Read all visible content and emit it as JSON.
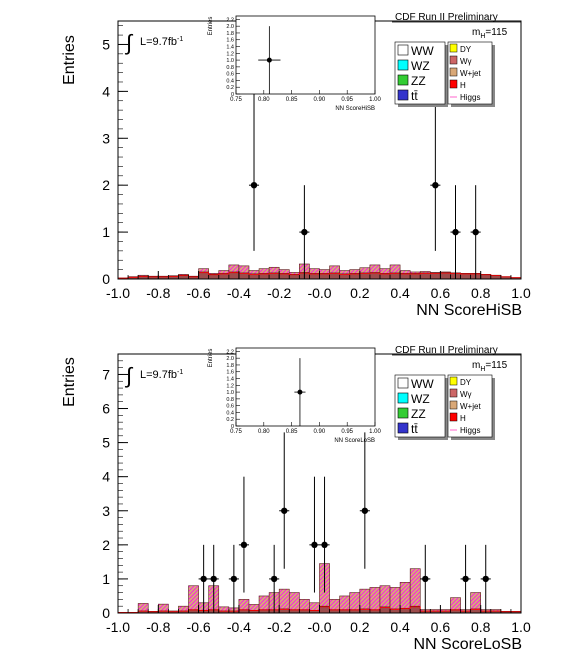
{
  "charts": [
    {
      "key": "top",
      "preliminary": "CDF Run II Preliminary",
      "lumi": "L=9.7fb",
      "lumi_exp": "-1",
      "mass_main": "m",
      "mass_sub": "H",
      "mass_val": "=115",
      "ylabel": "Entries",
      "xlabel": "NN ScoreHiSB",
      "inset_ylabel": "Entries",
      "inset_xlabel": "NN ScoreHiSB"
    },
    {
      "key": "bottom",
      "preliminary": "CDF Run II Preliminary",
      "lumi": "L=9.7fb",
      "lumi_exp": "-1",
      "mass_main": "m",
      "mass_sub": "H",
      "mass_val": "=115",
      "ylabel": "Entries",
      "xlabel": "NN ScoreLoSB",
      "inset_ylabel": "Entries",
      "inset_xlabel": "NN ScoreLoSB"
    }
  ],
  "legend": {
    "left": [
      {
        "label": "WW",
        "color": "#ffffff"
      },
      {
        "label": "WZ",
        "color": "#00ffff"
      },
      {
        "label": "ZZ",
        "color": "#33cc33"
      },
      {
        "label": "tt̄",
        "color": "#3333cc"
      }
    ],
    "right": [
      {
        "label": "DY",
        "color": "#ffff00"
      },
      {
        "label": "Wγ",
        "color": "#cc6666"
      },
      {
        "label": "W+jet",
        "color": "#d9a877"
      },
      {
        "label": "H",
        "color": "#ff0000"
      },
      {
        "label": "Higgs",
        "color": "#ff66cc",
        "line": true
      }
    ]
  },
  "chart_data": [
    {
      "type": "histogram",
      "name": "NN ScoreHiSB",
      "xlim": [
        -1.0,
        1.0
      ],
      "ylim": [
        0,
        5.5
      ],
      "xticks": [
        "-1.0",
        "-0.8",
        "-0.6",
        "-0.4",
        "-0.2",
        "-0.0",
        "0.2",
        "0.4",
        "0.6",
        "0.8",
        "1.0"
      ],
      "yticks": [
        "0",
        "1",
        "2",
        "3",
        "4",
        "5"
      ],
      "bin_width": 0.05,
      "mc_total": [
        0.02,
        0.05,
        0.08,
        0.06,
        0.06,
        0.07,
        0.1,
        0.06,
        0.22,
        0.12,
        0.18,
        0.3,
        0.28,
        0.18,
        0.22,
        0.25,
        0.2,
        0.14,
        0.32,
        0.22,
        0.2,
        0.28,
        0.18,
        0.2,
        0.24,
        0.3,
        0.22,
        0.3,
        0.18,
        0.15,
        0.16,
        0.14,
        0.15,
        0.13,
        0.12,
        0.12,
        0.1,
        0.08,
        0.05,
        0.03
      ],
      "background_dark": [
        0.02,
        0.04,
        0.06,
        0.05,
        0.05,
        0.06,
        0.08,
        0.05,
        0.15,
        0.1,
        0.12,
        0.15,
        0.13,
        0.11,
        0.12,
        0.13,
        0.12,
        0.1,
        0.14,
        0.12,
        0.12,
        0.13,
        0.11,
        0.12,
        0.13,
        0.14,
        0.12,
        0.13,
        0.12,
        0.12,
        0.13,
        0.13,
        0.14,
        0.13,
        0.12,
        0.12,
        0.1,
        0.08,
        0.05,
        0.03
      ],
      "data_points": [
        {
          "x": -0.325,
          "y": 2,
          "err": [
            1.4,
            2.0
          ]
        },
        {
          "x": -0.075,
          "y": 1,
          "err": [
            1.0,
            1.0
          ]
        },
        {
          "x": 0.575,
          "y": 2,
          "err": [
            1.4,
            2.0
          ]
        },
        {
          "x": 0.675,
          "y": 1,
          "err": [
            1.0,
            1.0
          ]
        },
        {
          "x": 0.775,
          "y": 1,
          "err": [
            1.0,
            1.0
          ]
        }
      ],
      "inset": {
        "xlim": [
          0.75,
          1.0
        ],
        "ylim": [
          0,
          2.3
        ],
        "xticks": [
          "0.75",
          "0.80",
          "0.85",
          "0.90",
          "0.95",
          "1.00"
        ],
        "yticks": [
          "0",
          "0.2",
          "0.4",
          "0.6",
          "0.8",
          "1.0",
          "1.2",
          "1.4",
          "1.6",
          "1.8",
          "2.0",
          "2.2"
        ],
        "data_points": [
          {
            "x": 0.81,
            "y": 1,
            "xerr": 0.02,
            "err": [
              1.0,
              1.0
            ]
          }
        ]
      }
    },
    {
      "type": "histogram",
      "name": "NN ScoreLoSB",
      "xlim": [
        -1.0,
        1.0
      ],
      "ylim": [
        0,
        7.6
      ],
      "xticks": [
        "-1.0",
        "-0.8",
        "-0.6",
        "-0.4",
        "-0.2",
        "-0.0",
        "0.2",
        "0.4",
        "0.6",
        "0.8",
        "1.0"
      ],
      "yticks": [
        "0",
        "1",
        "2",
        "3",
        "4",
        "5",
        "6",
        "7"
      ],
      "bin_width": 0.05,
      "mc_total": [
        0.02,
        0.02,
        0.28,
        0.05,
        0.26,
        0.06,
        0.2,
        0.8,
        0.3,
        0.8,
        0.18,
        0.15,
        0.4,
        0.25,
        0.5,
        0.6,
        0.7,
        0.6,
        0.4,
        0.3,
        1.45,
        0.4,
        0.5,
        0.6,
        0.7,
        0.75,
        0.8,
        0.75,
        0.9,
        1.3,
        0.1,
        0.1,
        0.1,
        0.45,
        0.1,
        0.6,
        0.1,
        0.1,
        0.05,
        0.05
      ],
      "background_dark": [
        0.02,
        0.02,
        0.06,
        0.04,
        0.06,
        0.04,
        0.06,
        0.1,
        0.08,
        0.1,
        0.06,
        0.06,
        0.1,
        0.08,
        0.1,
        0.1,
        0.12,
        0.1,
        0.1,
        0.08,
        0.2,
        0.1,
        0.1,
        0.1,
        0.12,
        0.1,
        0.18,
        0.12,
        0.14,
        0.2,
        0.06,
        0.06,
        0.06,
        0.1,
        0.06,
        0.12,
        0.06,
        0.06,
        0.04,
        0.04
      ],
      "data_points": [
        {
          "x": -0.575,
          "y": 1,
          "err": [
            1.0,
            1.0
          ]
        },
        {
          "x": -0.525,
          "y": 1,
          "err": [
            1.0,
            1.0
          ]
        },
        {
          "x": -0.425,
          "y": 1,
          "err": [
            1.0,
            1.0
          ]
        },
        {
          "x": -0.375,
          "y": 2,
          "err": [
            1.4,
            2.0
          ]
        },
        {
          "x": -0.225,
          "y": 1,
          "err": [
            1.0,
            1.0
          ]
        },
        {
          "x": -0.175,
          "y": 3,
          "err": [
            1.7,
            2.3
          ]
        },
        {
          "x": -0.025,
          "y": 2,
          "err": [
            1.4,
            2.0
          ]
        },
        {
          "x": 0.025,
          "y": 2,
          "err": [
            1.4,
            2.0
          ]
        },
        {
          "x": 0.225,
          "y": 3,
          "err": [
            1.7,
            2.3
          ]
        },
        {
          "x": 0.525,
          "y": 1,
          "err": [
            1.0,
            1.0
          ]
        },
        {
          "x": 0.725,
          "y": 1,
          "err": [
            1.0,
            1.0
          ]
        },
        {
          "x": 0.825,
          "y": 1,
          "err": [
            1.0,
            1.0
          ]
        }
      ],
      "inset": {
        "xlim": [
          0.75,
          1.0
        ],
        "ylim": [
          0,
          2.3
        ],
        "xticks": [
          "0.75",
          "0.80",
          "0.85",
          "0.90",
          "0.95",
          "1.00"
        ],
        "yticks": [
          "0",
          "0.2",
          "0.4",
          "0.6",
          "0.8",
          "1.0",
          "1.2",
          "1.4",
          "1.6",
          "1.8",
          "2.0",
          "2.2"
        ],
        "data_points": [
          {
            "x": 0.865,
            "y": 1,
            "xerr": 0.01,
            "err": [
              1.0,
              1.0
            ]
          }
        ]
      }
    }
  ]
}
